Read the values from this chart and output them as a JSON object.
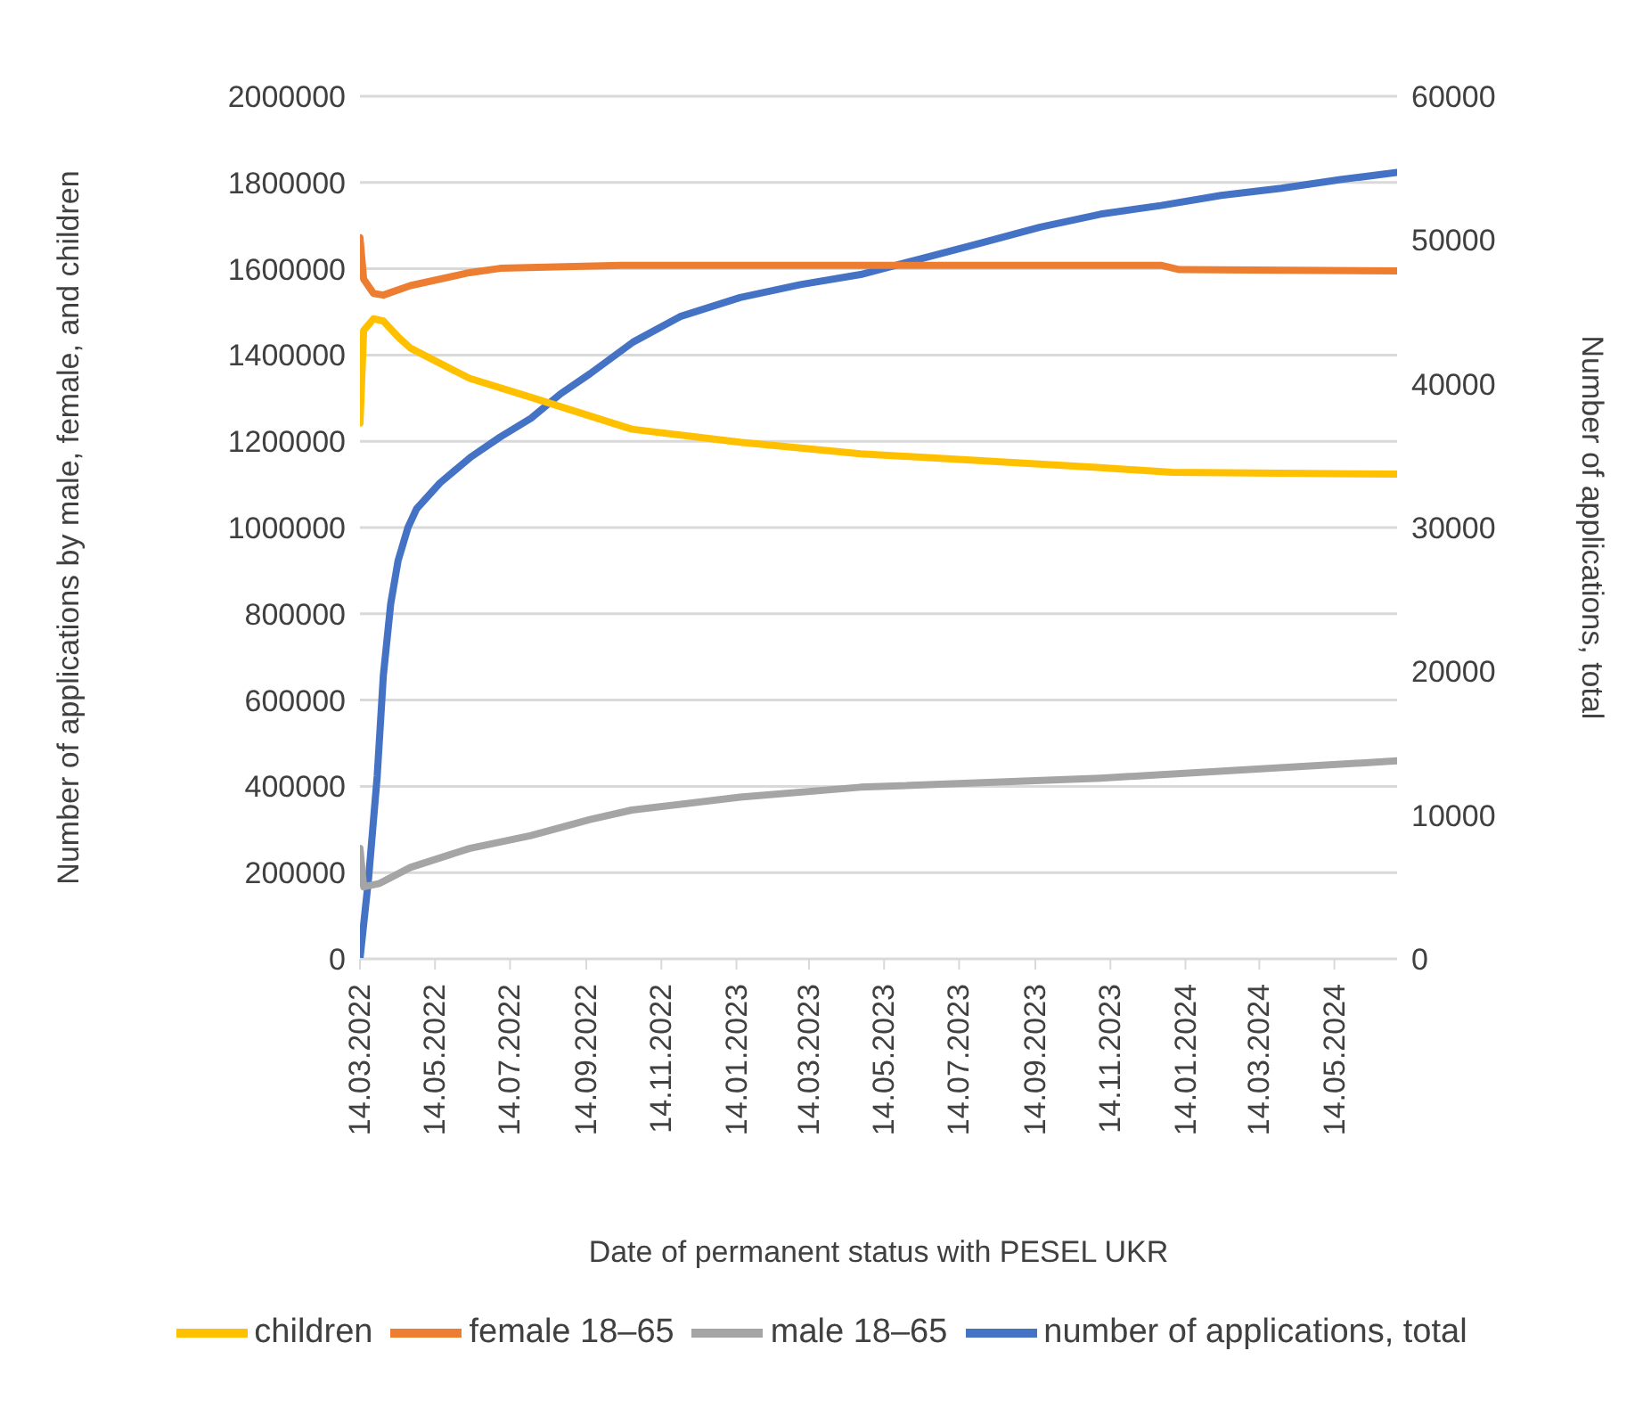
{
  "chart_data": {
    "type": "line",
    "xlabel": "Date of permanent status with PESEL UKR",
    "ylabel": "Number of applications by male, female, and children",
    "y2label": "Number of applications, total",
    "xlim": [
      "2022-03-14",
      "2024-07-04"
    ],
    "xticks": [
      {
        "value": "2022-03-14",
        "label": "14.03.2022"
      },
      {
        "value": "2022-05-14",
        "label": "14.05.2022"
      },
      {
        "value": "2022-07-14",
        "label": "14.07.2022"
      },
      {
        "value": "2022-09-14",
        "label": "14.09.2022"
      },
      {
        "value": "2022-11-14",
        "label": "14.11.2022"
      },
      {
        "value": "2023-01-14",
        "label": "14.01.2023"
      },
      {
        "value": "2023-03-14",
        "label": "14.03.2023"
      },
      {
        "value": "2023-05-14",
        "label": "14.05.2023"
      },
      {
        "value": "2023-07-14",
        "label": "14.07.2023"
      },
      {
        "value": "2023-09-14",
        "label": "14.09.2023"
      },
      {
        "value": "2023-11-14",
        "label": "14.11.2023"
      },
      {
        "value": "2024-01-14",
        "label": "14.01.2024"
      },
      {
        "value": "2024-03-14",
        "label": "14.03.2024"
      },
      {
        "value": "2024-05-14",
        "label": "14.05.2024"
      }
    ],
    "ylim": [
      0,
      2000000
    ],
    "yticks": [
      0,
      200000,
      400000,
      600000,
      800000,
      1000000,
      1200000,
      1400000,
      1600000,
      1800000,
      2000000
    ],
    "y2lim": [
      0,
      60000
    ],
    "y2ticks": [
      0,
      10000,
      20000,
      30000,
      40000,
      50000,
      60000
    ],
    "grid": "y",
    "legend": "bottom",
    "marker": "none",
    "line_style": "solid",
    "series": [
      {
        "name": "number of applications, total",
        "color": "#4472c4",
        "axis": "y2",
        "x": [
          "2022-03-14",
          "2022-03-21",
          "2022-03-28",
          "2022-04-02",
          "2022-04-08",
          "2022-04-14",
          "2022-04-22",
          "2022-04-29",
          "2022-05-18",
          "2022-06-12",
          "2022-07-06",
          "2022-07-31",
          "2022-08-24",
          "2022-09-17",
          "2022-10-22",
          "2022-11-30",
          "2023-01-17",
          "2023-03-07",
          "2023-04-25",
          "2023-06-13",
          "2023-08-01",
          "2023-09-18",
          "2023-11-06",
          "2023-12-25",
          "2024-02-12",
          "2024-04-01",
          "2024-05-19",
          "2024-07-04"
        ],
        "values": [
          0,
          5600,
          12700,
          19700,
          24700,
          27700,
          30000,
          31300,
          33100,
          34900,
          36300,
          37600,
          39300,
          40700,
          42900,
          44700,
          46000,
          46900,
          47600,
          48700,
          49800,
          50900,
          51800,
          52400,
          53100,
          53600,
          54200,
          54700
        ]
      },
      {
        "name": "female 18–65",
        "color": "#ed7d31",
        "x": [
          "2022-03-14",
          "2022-03-17",
          "2022-03-25",
          "2022-04-02",
          "2022-04-24",
          "2022-06-11",
          "2022-07-06",
          "2022-10-12",
          "2023-04-25",
          "2023-12-25",
          "2024-01-09",
          "2024-07-04"
        ],
        "values": [
          1672000,
          1576000,
          1543000,
          1539000,
          1561000,
          1591000,
          1601000,
          1608000,
          1608000,
          1608000,
          1598000,
          1595000
        ]
      },
      {
        "name": "male 18–65",
        "color": "#a5a5a5",
        "x": [
          "2022-03-14",
          "2022-03-17",
          "2022-03-30",
          "2022-04-24",
          "2022-06-11",
          "2022-07-31",
          "2022-09-17",
          "2022-10-21",
          "2023-01-17",
          "2023-04-25",
          "2023-11-06",
          "2024-07-04"
        ],
        "values": [
          256000,
          167000,
          175000,
          212000,
          256000,
          286000,
          323000,
          345000,
          375000,
          398000,
          419000,
          459000
        ]
      },
      {
        "name": "children",
        "color": "#ffc000",
        "x": [
          "2022-03-14",
          "2022-03-17",
          "2022-03-25",
          "2022-04-02",
          "2022-04-14",
          "2022-04-24",
          "2022-06-11",
          "2022-07-31",
          "2022-10-21",
          "2023-01-17",
          "2023-04-25",
          "2023-11-06",
          "2024-01-03",
          "2024-07-04"
        ],
        "values": [
          1242000,
          1457000,
          1484000,
          1479000,
          1442000,
          1416000,
          1346000,
          1302000,
          1228000,
          1198000,
          1171000,
          1139000,
          1128000,
          1124000
        ]
      }
    ]
  }
}
